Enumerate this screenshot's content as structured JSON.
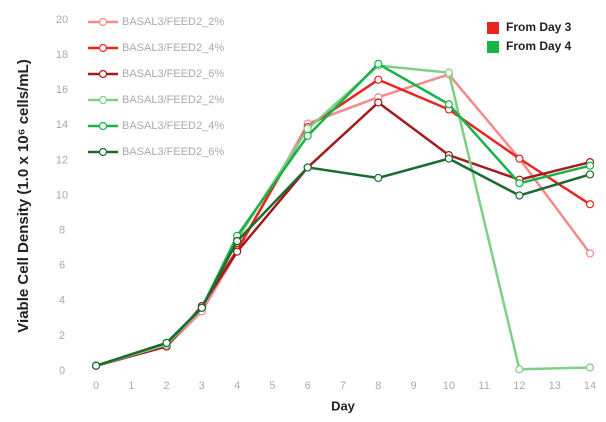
{
  "chart_data": {
    "type": "line",
    "x": [
      0,
      2,
      3,
      4,
      6,
      8,
      10,
      12,
      14
    ],
    "xlim": [
      0,
      14
    ],
    "xticks": [
      0,
      1,
      2,
      3,
      4,
      5,
      6,
      7,
      8,
      9,
      10,
      11,
      12,
      13,
      14
    ],
    "ylim": [
      0,
      20
    ],
    "yticks": [
      0,
      2,
      4,
      6,
      8,
      10,
      12,
      14,
      16,
      18,
      20
    ],
    "x_label": "Day",
    "y_label": "Viable Cell Density (1.0 x 10⁶ cells/mL)",
    "series": [
      {
        "name": "BASAL3/FEED2_2%",
        "color": "#f28b8b",
        "values": [
          0.3,
          1.4,
          3.4,
          6.8,
          14.1,
          15.6,
          16.9,
          12.1,
          6.7
        ]
      },
      {
        "name": "BASAL3/FEED2_4%",
        "color": "#e8261f",
        "values": [
          0.3,
          1.4,
          3.7,
          6.9,
          13.9,
          16.6,
          14.9,
          12.1,
          9.5
        ]
      },
      {
        "name": "BASAL3/FEED2_6%",
        "color": "#a11d1d",
        "values": [
          0.3,
          1.4,
          3.7,
          6.8,
          11.6,
          15.3,
          12.3,
          10.9,
          11.9
        ]
      },
      {
        "name": "BASAL3/FEED2_2%",
        "color": "#7fcf85",
        "values": [
          0.3,
          1.5,
          3.6,
          7.5,
          13.8,
          17.4,
          17.0,
          0.1,
          0.2
        ]
      },
      {
        "name": "BASAL3/FEED2_4%",
        "color": "#19b24b",
        "values": [
          0.3,
          1.6,
          3.6,
          7.7,
          13.4,
          17.5,
          15.2,
          10.7,
          11.7
        ]
      },
      {
        "name": "BASAL3/FEED2_6%",
        "color": "#1e6b32",
        "values": [
          0.3,
          1.6,
          3.6,
          7.4,
          11.6,
          11.0,
          12.1,
          10.0,
          11.2
        ]
      }
    ],
    "group_legend": [
      {
        "label": "From Day 3",
        "color": "#e8261f"
      },
      {
        "label": "From Day 4",
        "color": "#19b24b"
      }
    ]
  }
}
